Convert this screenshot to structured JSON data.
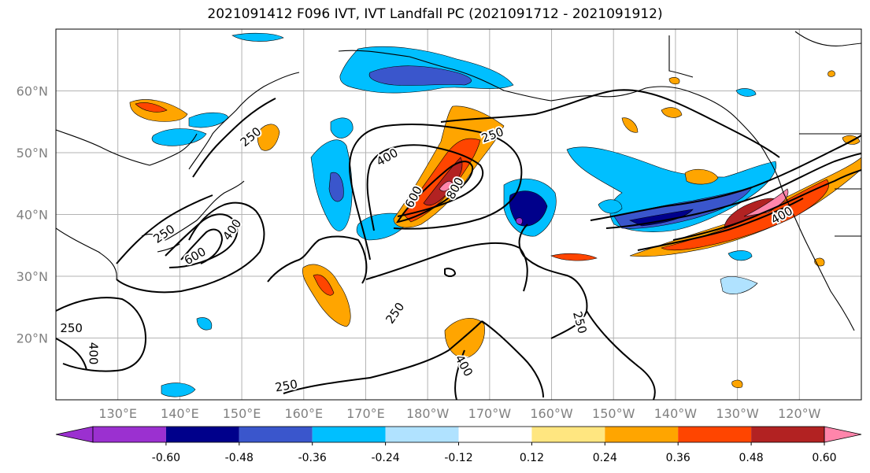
{
  "title": "2021091412 F096 IVT, IVT Landfall PC (2021091712 - 2021091912)",
  "map": {
    "lon_range": [
      120,
      250
    ],
    "lat_range": [
      10,
      70
    ],
    "lon_ticks": [
      {
        "lon": 130,
        "label": "130°E"
      },
      {
        "lon": 140,
        "label": "140°E"
      },
      {
        "lon": 150,
        "label": "150°E"
      },
      {
        "lon": 160,
        "label": "160°E"
      },
      {
        "lon": 170,
        "label": "170°E"
      },
      {
        "lon": 180,
        "label": "180°W"
      },
      {
        "lon": 190,
        "label": "170°W"
      },
      {
        "lon": 200,
        "label": "160°W"
      },
      {
        "lon": 210,
        "label": "150°W"
      },
      {
        "lon": 220,
        "label": "140°W"
      },
      {
        "lon": 230,
        "label": "130°W"
      },
      {
        "lon": 240,
        "label": "120°W"
      }
    ],
    "lat_ticks": [
      {
        "lat": 60,
        "label": "60°N"
      },
      {
        "lat": 50,
        "label": "50°N"
      },
      {
        "lat": 40,
        "label": "40°N"
      },
      {
        "lat": 30,
        "label": "30°N"
      },
      {
        "lat": 20,
        "label": "20°N"
      }
    ],
    "grid": true,
    "contour_labels": [
      {
        "text": "250",
        "lon": 151.5,
        "lat": 52.5,
        "rot": -40
      },
      {
        "text": "400",
        "lon": 173.5,
        "lat": 49.2,
        "rot": -30
      },
      {
        "text": "600",
        "lon": 177.8,
        "lat": 42.8,
        "rot": -62
      },
      {
        "text": "800",
        "lon": 184.5,
        "lat": 44.2,
        "rot": -62
      },
      {
        "text": "250",
        "lon": 190.5,
        "lat": 52.8,
        "rot": -20
      },
      {
        "text": "250",
        "lon": 137.5,
        "lat": 36.8,
        "rot": -35
      },
      {
        "text": "400",
        "lon": 148.5,
        "lat": 37.5,
        "rot": -55
      },
      {
        "text": "600",
        "lon": 142.5,
        "lat": 33.2,
        "rot": -30
      },
      {
        "text": "250",
        "lon": 122.5,
        "lat": 21.5,
        "rot": 0
      },
      {
        "text": "400",
        "lon": 126.0,
        "lat": 17.5,
        "rot": 90
      },
      {
        "text": "250",
        "lon": 174.8,
        "lat": 24.0,
        "rot": -55
      },
      {
        "text": "400",
        "lon": 185.8,
        "lat": 15.5,
        "rot": 60
      },
      {
        "text": "250",
        "lon": 204.5,
        "lat": 22.5,
        "rot": 75
      },
      {
        "text": "250",
        "lon": 157.2,
        "lat": 12.2,
        "rot": -10
      },
      {
        "text": "400",
        "lon": 237.2,
        "lat": 39.8,
        "rot": -30
      }
    ]
  },
  "colorbar": {
    "colors": [
      "#9b30d0",
      "#00008b",
      "#3a56cc",
      "#00bfff",
      "#b0e2ff",
      "#ffffff",
      "#ffe680",
      "#ffa500",
      "#ff4500",
      "#b22222",
      "#ff85ab"
    ],
    "ticks": [
      "-0.60",
      "-0.48",
      "-0.36",
      "-0.24",
      "-0.12",
      "0.12",
      "0.24",
      "0.36",
      "0.48",
      "0.60"
    ]
  }
}
